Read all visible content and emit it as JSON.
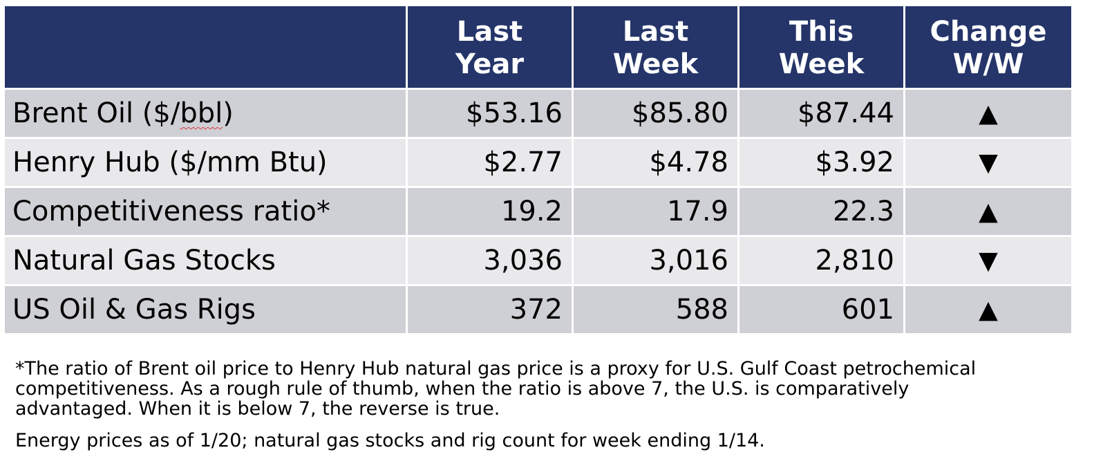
{
  "table": {
    "header": {
      "label_col": "",
      "last_year": [
        "Last",
        "Year"
      ],
      "last_week": [
        "Last",
        "Week"
      ],
      "this_week": [
        "This",
        "Week"
      ],
      "change": [
        "Change",
        "W/W"
      ]
    },
    "rows": [
      {
        "label_prefix": "Brent Oil ($/",
        "label_unit": "bbl",
        "label_suffix": ")",
        "last_year": "$53.16",
        "last_week": "$85.80",
        "this_week": "$87.44",
        "change_icon": "triangle-up-icon",
        "change": "▲"
      },
      {
        "label": "Henry Hub ($/mm Btu)",
        "last_year": "$2.77",
        "last_week": "$4.78",
        "this_week": "$3.92",
        "change_icon": "triangle-down-icon",
        "change": "▼"
      },
      {
        "label": "Competitiveness ratio*",
        "last_year": "19.2",
        "last_week": "17.9",
        "this_week": "22.3",
        "change_icon": "triangle-up-icon",
        "change": "▲"
      },
      {
        "label": "Natural Gas Stocks",
        "last_year": "3,036",
        "last_week": "3,016",
        "this_week": "2,810",
        "change_icon": "triangle-down-icon",
        "change": "▼"
      },
      {
        "label": "US Oil & Gas Rigs",
        "last_year": "372",
        "last_week": "588",
        "this_week": "601",
        "change_icon": "triangle-up-icon",
        "change": "▲"
      }
    ]
  },
  "footnote": {
    "lines": [
      "*The ratio of Brent oil price to Henry Hub natural gas price is a proxy for U.S. Gulf Coast petrochemical",
      "competitiveness. As a rough rule of thumb, when the ratio is above 7, the U.S. is comparatively",
      "advantaged. When it is below 7, the reverse is true."
    ],
    "as_of": "Energy prices as of 1/20; natural gas stocks and rig count for week ending 1/14."
  },
  "colors": {
    "header_bg": "#253569",
    "header_text": "#ffffff",
    "row_dark": "#cfd0d5",
    "row_light": "#e9e9ec",
    "spellcheck_underline": "#d9393b"
  }
}
